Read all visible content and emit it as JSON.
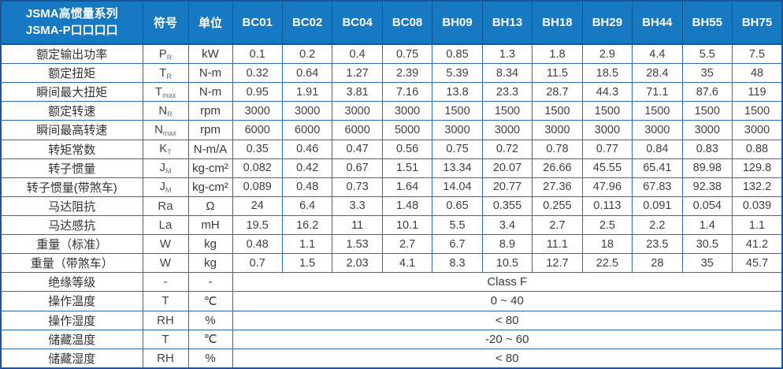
{
  "table": {
    "title_line1": "JSMA高惯量系列",
    "title_line2": "JSMA-P口口口口",
    "col_headers": [
      "符号",
      "单位"
    ],
    "models": [
      "BC01",
      "BC02",
      "BC04",
      "BC08",
      "BH09",
      "BH13",
      "BH18",
      "BH29",
      "BH44",
      "BH55",
      "BH75"
    ],
    "rows": [
      {
        "label": "额定输出功率",
        "sym": "P",
        "sub": "R",
        "unit": "kW",
        "values": [
          "0.1",
          "0.2",
          "0.4",
          "0.75",
          "0.85",
          "1.3",
          "1.8",
          "2.9",
          "4.4",
          "5.5",
          "7.5"
        ]
      },
      {
        "label": "额定扭矩",
        "sym": "T",
        "sub": "R",
        "unit": "N-m",
        "values": [
          "0.32",
          "0.64",
          "1.27",
          "2.39",
          "5.39",
          "8.34",
          "11.5",
          "18.5",
          "28.4",
          "35",
          "48"
        ]
      },
      {
        "label": "瞬间最大扭矩",
        "sym": "T",
        "sub": "max",
        "unit": "N-m",
        "values": [
          "0.95",
          "1.91",
          "3.81",
          "7.16",
          "13.8",
          "23.3",
          "28.7",
          "44.3",
          "71.1",
          "87.6",
          "119"
        ]
      },
      {
        "label": "额定转速",
        "sym": "N",
        "sub": "R",
        "unit": "rpm",
        "values": [
          "3000",
          "3000",
          "3000",
          "3000",
          "1500",
          "1500",
          "1500",
          "1500",
          "1500",
          "1500",
          "1500"
        ]
      },
      {
        "label": "瞬间最高转速",
        "sym": "N",
        "sub": "max",
        "unit": "rpm",
        "values": [
          "6000",
          "6000",
          "6000",
          "5000",
          "3000",
          "3000",
          "3000",
          "3000",
          "3000",
          "3000",
          "3000"
        ]
      },
      {
        "label": "转矩常数",
        "sym": "K",
        "sub": "T",
        "unit": "N-m/A",
        "values": [
          "0.35",
          "0.46",
          "0.47",
          "0.56",
          "0.75",
          "0.72",
          "0.78",
          "0.77",
          "0.84",
          "0.83",
          "0.88"
        ]
      },
      {
        "label": "转子惯量",
        "sym": "J",
        "sub": "M",
        "unit": "kg-cm²",
        "values": [
          "0.082",
          "0.42",
          "0.67",
          "1.51",
          "13.34",
          "20.07",
          "26.66",
          "45.55",
          "65.41",
          "89.98",
          "129.8"
        ]
      },
      {
        "label": "转子惯量(带煞车)",
        "sym": "J",
        "sub": "M",
        "unit": "kg-cm²",
        "values": [
          "0.089",
          "0.48",
          "0.73",
          "1.64",
          "14.04",
          "20.77",
          "27.36",
          "47.96",
          "67.83",
          "92.38",
          "132.2"
        ]
      },
      {
        "label": "马达阻抗",
        "sym": "Ra",
        "sub": "",
        "unit": "Ω",
        "values": [
          "24",
          "6.4",
          "3.3",
          "1.48",
          "0.65",
          "0.355",
          "0.255",
          "0.113",
          "0.091",
          "0.054",
          "0.039"
        ]
      },
      {
        "label": "马达感抗",
        "sym": "La",
        "sub": "",
        "unit": "mH",
        "values": [
          "19.5",
          "16.2",
          "11",
          "10.1",
          "5.5",
          "3.4",
          "2.7",
          "2.5",
          "2.2",
          "1.4",
          "1.1"
        ]
      },
      {
        "label": "重量（标准）",
        "sym": "W",
        "sub": "",
        "unit": "kg",
        "values": [
          "0.48",
          "1.1",
          "1.53",
          "2.7",
          "6.7",
          "8.9",
          "11.1",
          "18",
          "23.5",
          "30.5",
          "41.2"
        ]
      },
      {
        "label": "重量（带煞车）",
        "sym": "W",
        "sub": "",
        "unit": "kg",
        "values": [
          "0.7",
          "1.5",
          "2.03",
          "4.1",
          "8.3",
          "10.5",
          "12.7",
          "22.5",
          "28",
          "35",
          "45.7"
        ]
      },
      {
        "label": "绝缘等级",
        "sym": "-",
        "sub": "",
        "unit": "-",
        "merged": "Class F"
      },
      {
        "label": "操作温度",
        "sym": "T",
        "sub": "",
        "unit": "℃",
        "merged": "0 ~ 40"
      },
      {
        "label": "操作湿度",
        "sym": "RH",
        "sub": "",
        "unit": "%",
        "merged": "< 80"
      },
      {
        "label": "储藏温度",
        "sym": "T",
        "sub": "",
        "unit": "℃",
        "merged": "-20 ~ 60"
      },
      {
        "label": "储藏湿度",
        "sym": "RH",
        "sub": "",
        "unit": "%",
        "merged": "< 80"
      }
    ],
    "colors": {
      "header_bg": "#1779c1",
      "header_divider": "#0d5a9b",
      "grid_border": "#2e6ca8",
      "outer_border": "#1b5596",
      "header_text": "#ffffff",
      "body_text": "#3f3f3f"
    }
  }
}
